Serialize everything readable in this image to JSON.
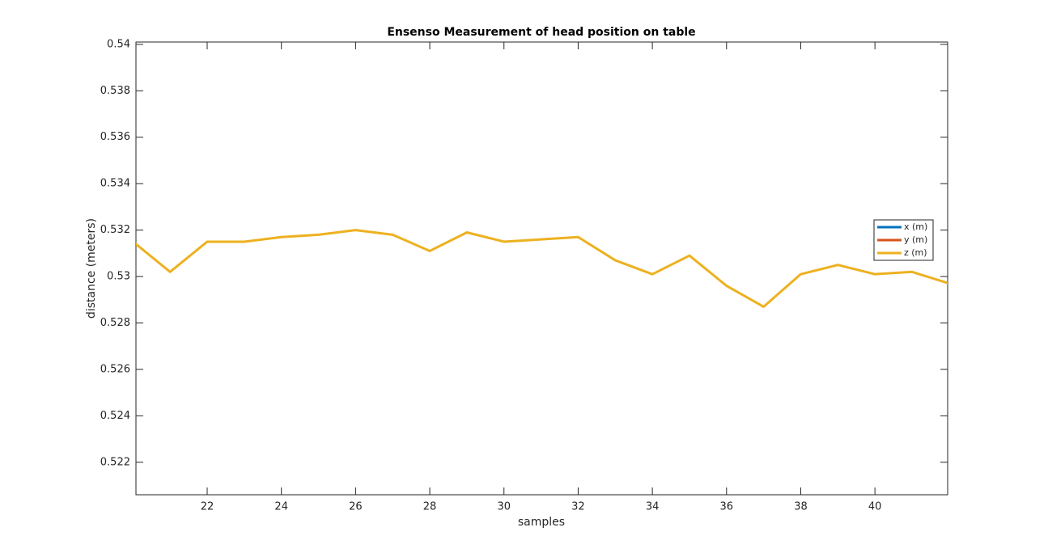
{
  "chart_data": {
    "type": "line",
    "title": "Ensenso Measurement of head position on table",
    "x_label": "samples",
    "y_label": "distance (meters)",
    "x": [
      20,
      21,
      22,
      23,
      24,
      25,
      26,
      27,
      28,
      29,
      30,
      31,
      32,
      33,
      34,
      35,
      36,
      37,
      38,
      39,
      40,
      41,
      42
    ],
    "series": [
      {
        "name": "x (m)",
        "color": "#0072bd",
        "values": [
          null,
          null,
          null,
          null,
          null,
          null,
          null,
          null,
          null,
          null,
          null,
          null,
          null,
          null,
          null,
          null,
          null,
          null,
          null,
          null,
          null,
          null,
          null
        ]
      },
      {
        "name": "y (m)",
        "color": "#d95319",
        "values": [
          null,
          null,
          null,
          null,
          null,
          null,
          null,
          null,
          null,
          null,
          null,
          null,
          null,
          null,
          null,
          null,
          null,
          null,
          null,
          null,
          null,
          null,
          null
        ]
      },
      {
        "name": "z (m)",
        "color": "#edb120",
        "values": [
          0.5315,
          0.5302,
          0.5315,
          0.5315,
          0.5317,
          0.5318,
          0.532,
          0.5318,
          0.5311,
          0.5319,
          0.5315,
          0.5316,
          0.5317,
          0.5307,
          0.5301,
          0.5309,
          0.5296,
          0.5287,
          0.5301,
          0.5305,
          0.5301,
          0.5302,
          0.5297
        ]
      }
    ],
    "xlim": [
      20.08,
      41.96
    ],
    "xticks": [
      22,
      24,
      26,
      28,
      30,
      32,
      34,
      36,
      38,
      40
    ],
    "ylim": [
      0.5206,
      0.5401
    ],
    "yticks": [
      0.522,
      0.524,
      0.526,
      0.528,
      0.53,
      0.532,
      0.534,
      0.536,
      0.538,
      0.54
    ],
    "legend": "right"
  }
}
